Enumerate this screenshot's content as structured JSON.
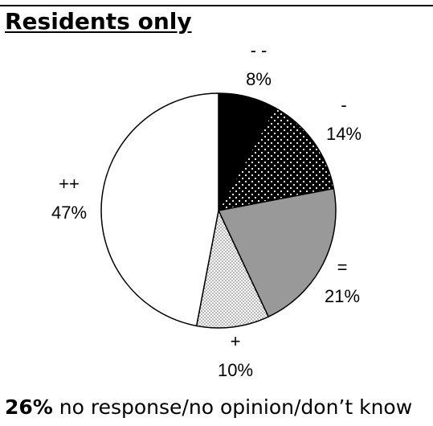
{
  "chart_data": {
    "type": "pie",
    "title": "Residents only",
    "slices": [
      {
        "label": "- -",
        "value": 8,
        "value_label": "8%",
        "fill": "#000000",
        "pattern": "solid"
      },
      {
        "label": "-",
        "value": 14,
        "value_label": "14%",
        "fill": "#000000",
        "pattern": "white-dots-on-black"
      },
      {
        "label": "=",
        "value": 21,
        "value_label": "21%",
        "fill": "#999999",
        "pattern": "solid"
      },
      {
        "label": "+",
        "value": 10,
        "value_label": "10%",
        "fill": "#ffffff",
        "pattern": "fine-dots-on-white"
      },
      {
        "label": "++",
        "value": 47,
        "value_label": "47%",
        "fill": "#ffffff",
        "pattern": "solid"
      }
    ],
    "start": "12 o'clock",
    "direction": "clockwise",
    "legend": "none"
  },
  "footnote": {
    "percent": "26%",
    "text": "no response/no opinion/don’t know"
  }
}
